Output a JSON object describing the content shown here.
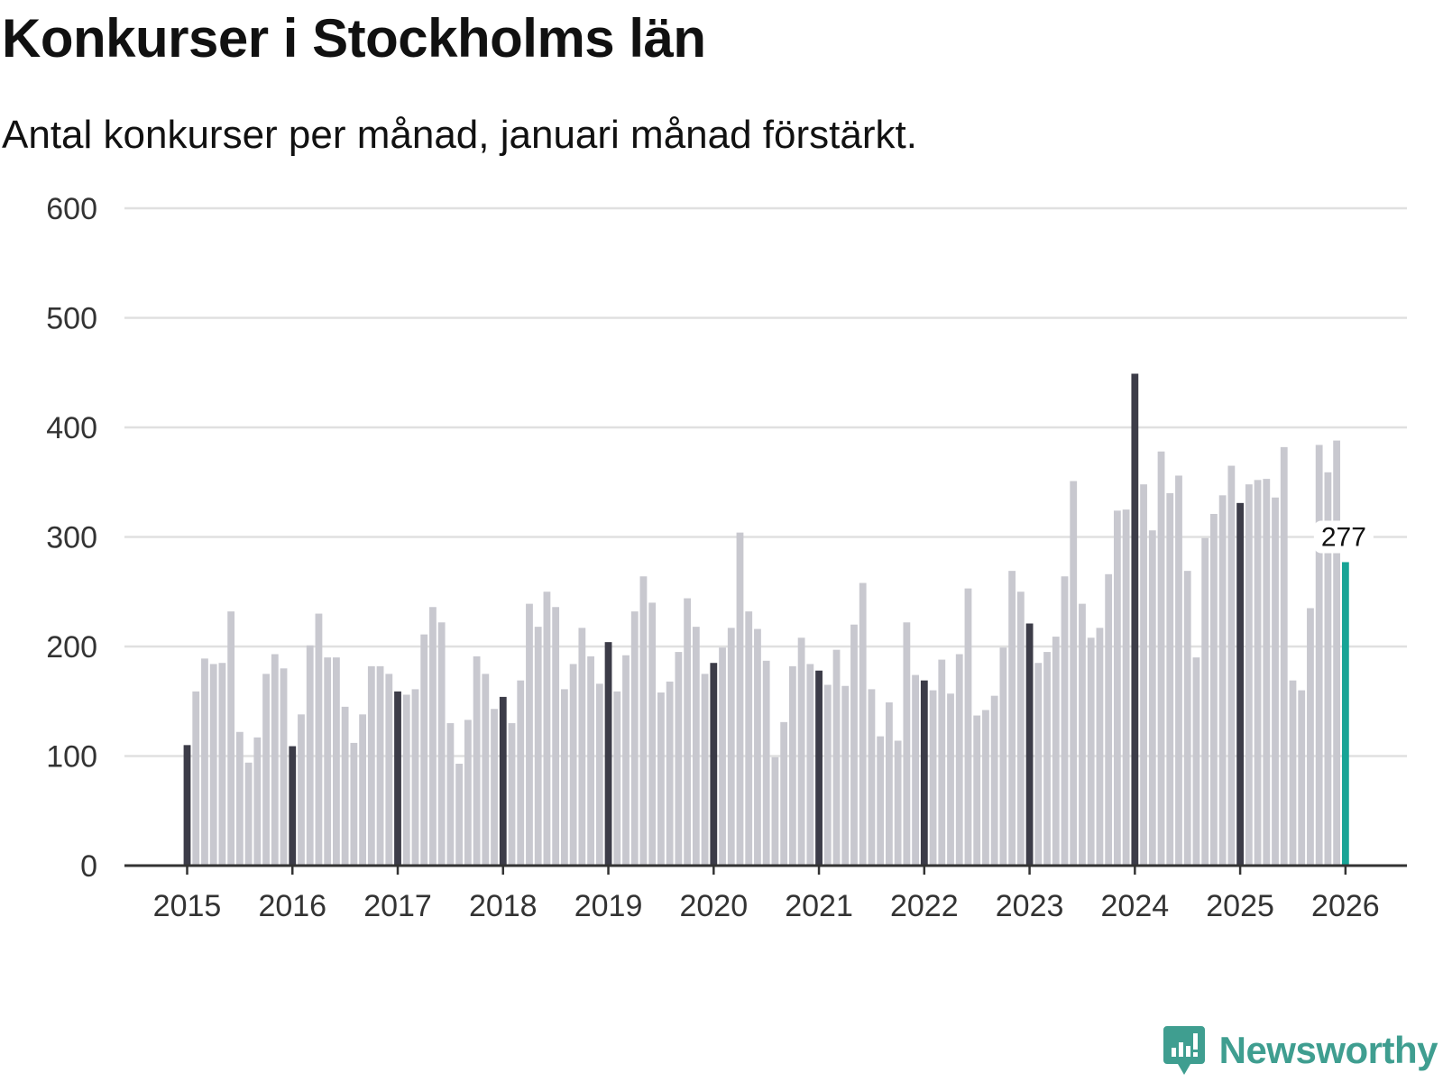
{
  "brand": {
    "name": "Newsworthy",
    "color": "#3f9e90"
  },
  "chart_data": {
    "type": "bar",
    "title": "Konkurser i Stockholms län",
    "subtitle": "Antal konkurser per månad, januari månad förstärkt.",
    "xlabel": "",
    "ylabel": "",
    "ylim": [
      0,
      600
    ],
    "yticks": [
      0,
      100,
      200,
      300,
      400,
      500,
      600
    ],
    "grid": true,
    "legend": "none",
    "xticks": [
      "2015",
      "2016",
      "2017",
      "2018",
      "2019",
      "2020",
      "2021",
      "2022",
      "2023",
      "2024",
      "2025",
      "2026"
    ],
    "colors": {
      "regular": "#c8c8cf",
      "january": "#3c3c48",
      "latest": "#17a496",
      "grid": "#e0e0e0",
      "axis": "#333333"
    },
    "start": "2015-01",
    "annotation": {
      "category": "2026-01",
      "text": "277"
    },
    "series": [
      {
        "name": "Antal konkurser",
        "values": [
          110,
          159,
          189,
          184,
          185,
          232,
          122,
          94,
          117,
          175,
          193,
          180,
          109,
          138,
          201,
          230,
          190,
          190,
          145,
          112,
          138,
          182,
          182,
          175,
          159,
          156,
          161,
          211,
          236,
          222,
          130,
          93,
          133,
          191,
          175,
          143,
          154,
          130,
          169,
          239,
          218,
          250,
          236,
          161,
          184,
          217,
          191,
          166,
          204,
          159,
          192,
          232,
          264,
          240,
          158,
          168,
          195,
          244,
          218,
          175,
          185,
          199,
          217,
          304,
          232,
          216,
          187,
          99,
          131,
          182,
          208,
          184,
          178,
          165,
          197,
          164,
          220,
          258,
          161,
          118,
          149,
          114,
          222,
          174,
          169,
          160,
          188,
          157,
          193,
          253,
          137,
          142,
          155,
          199,
          269,
          250,
          221,
          185,
          195,
          209,
          264,
          351,
          239,
          208,
          217,
          266,
          324,
          325,
          449,
          348,
          306,
          378,
          340,
          356,
          269,
          190,
          299,
          321,
          338,
          365,
          331,
          348,
          352,
          353,
          336,
          382,
          169,
          160,
          235,
          384,
          359,
          388,
          277
        ]
      }
    ]
  }
}
